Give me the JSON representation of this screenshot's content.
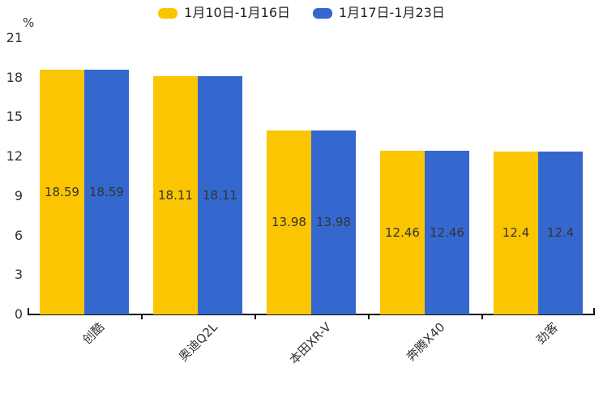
{
  "chart_data": {
    "type": "bar",
    "title": "",
    "categories": [
      "创酷",
      "奥迪Q2L",
      "本田XR-V",
      "奔腾X40",
      "劲客"
    ],
    "series": [
      {
        "name": "1月10日-1月16日",
        "color": "#FCC502",
        "values": [
          18.59,
          18.11,
          13.98,
          12.46,
          12.4
        ]
      },
      {
        "name": "1月17日-1月23日",
        "color": "#3568CE",
        "values": [
          18.59,
          18.11,
          13.98,
          12.46,
          12.4
        ]
      }
    ],
    "bar_labels": [
      [
        "18.59",
        "18.11",
        "13.98",
        "12.46",
        "12.4"
      ],
      [
        "18.59",
        "18.11",
        "13.98",
        "12.46",
        "12.4"
      ]
    ],
    "ylabel": "%",
    "yticks": [
      "0",
      "3",
      "6",
      "9",
      "12",
      "15",
      "18",
      "21"
    ],
    "ylim": [
      0,
      21
    ],
    "grid": false,
    "legend_position": "top",
    "xlabel": "",
    "colors": {
      "axis": "#111111",
      "tick_label": "#333333",
      "bar_value_label": "#333333",
      "background": "#ffffff"
    }
  }
}
